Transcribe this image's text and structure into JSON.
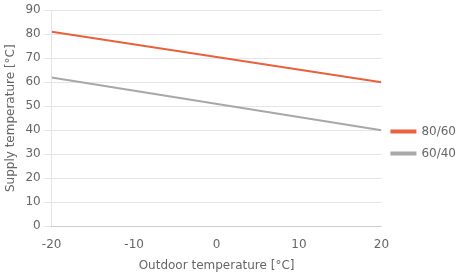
{
  "chart_data": {
    "type": "line",
    "xlabel": "Outdoor temperature [°C]",
    "ylabel": "Supply temperature [°C]",
    "xlim": [
      -20,
      20
    ],
    "ylim": [
      0,
      90
    ],
    "xticks": [
      -20,
      -10,
      0,
      10,
      20
    ],
    "yticks": [
      0,
      10,
      20,
      30,
      40,
      50,
      60,
      70,
      80,
      90
    ],
    "grid": "y",
    "legend": "right",
    "series": [
      {
        "name": "80/60",
        "color": "#E8613C",
        "x": [
          -20,
          20
        ],
        "values": [
          81,
          60
        ]
      },
      {
        "name": "60/40",
        "color": "#A8A8A8",
        "x": [
          -20,
          20
        ],
        "values": [
          62,
          40
        ]
      }
    ]
  }
}
